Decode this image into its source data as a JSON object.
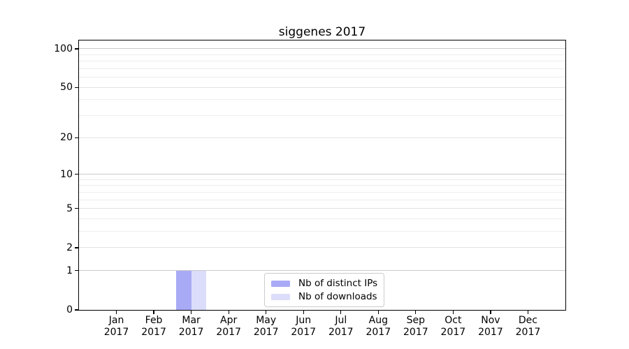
{
  "chart_data": {
    "type": "bar",
    "title": "siggenes 2017",
    "xlabel": "",
    "ylabel": "",
    "months": [
      "Jan",
      "Feb",
      "Mar",
      "Apr",
      "May",
      "Jun",
      "Jul",
      "Aug",
      "Sep",
      "Oct",
      "Nov",
      "Dec"
    ],
    "year_label": "2017",
    "series": [
      {
        "name": "Nb of distinct IPs",
        "color": "#a9aaf6",
        "values": [
          0,
          0,
          1,
          0,
          0,
          0,
          0,
          0,
          0,
          0,
          0,
          0
        ]
      },
      {
        "name": "Nb of downloads",
        "color": "#dcddfa",
        "values": [
          0,
          0,
          1,
          0,
          0,
          0,
          0,
          0,
          0,
          0,
          0,
          0
        ]
      }
    ],
    "y_scale": "log1p",
    "y_major_ticks": [
      0,
      1,
      2,
      5,
      10,
      20,
      50,
      100
    ],
    "y_minor_ticks": [
      3,
      4,
      6,
      7,
      8,
      9,
      30,
      40,
      60,
      70,
      80,
      90
    ],
    "emphasized_gridlines": [
      1,
      10,
      100
    ],
    "ylim_top_value": 116,
    "xlim_units": [
      -1,
      12
    ],
    "bar_width_units": 0.4,
    "grid": "on",
    "legend": {
      "position": "lower center",
      "entries": [
        "Nb of distinct IPs",
        "Nb of downloads"
      ]
    }
  }
}
